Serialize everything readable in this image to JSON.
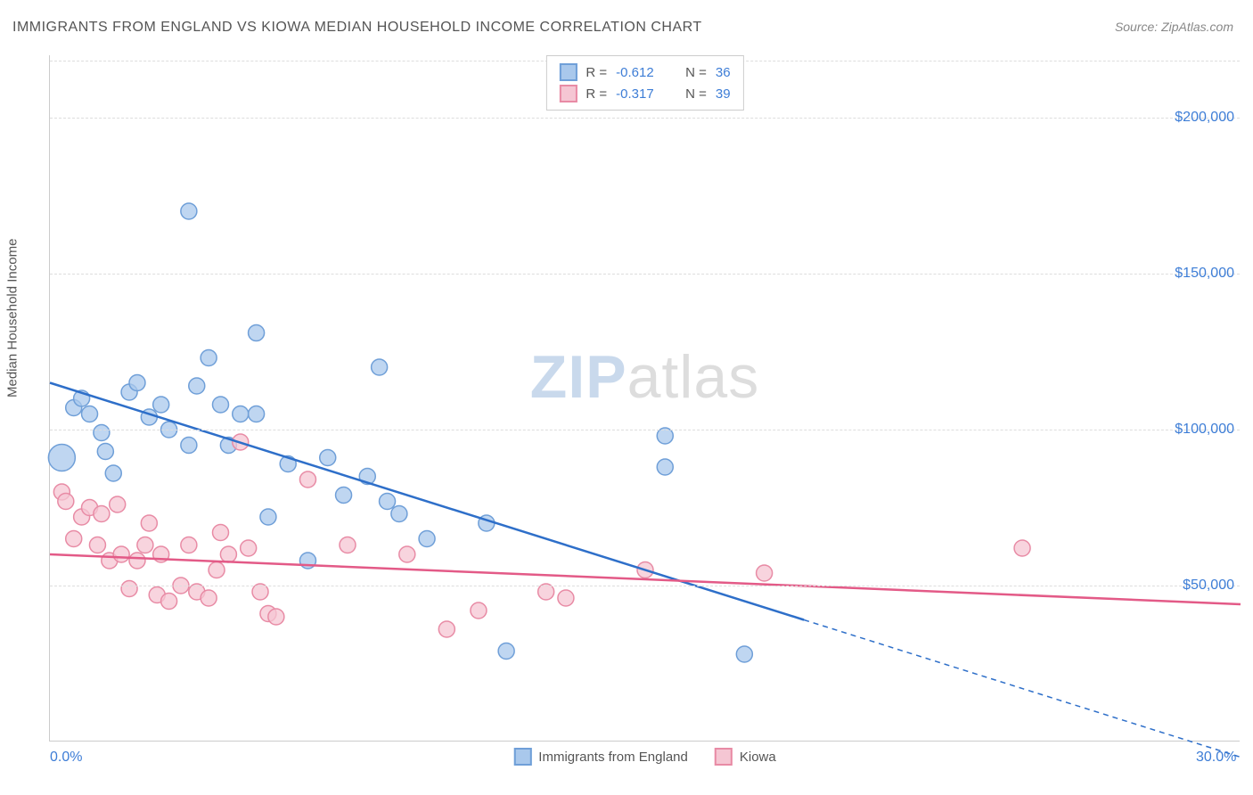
{
  "title": "IMMIGRANTS FROM ENGLAND VS KIOWA MEDIAN HOUSEHOLD INCOME CORRELATION CHART",
  "source": "Source: ZipAtlas.com",
  "watermark_prefix": "ZIP",
  "watermark_suffix": "atlas",
  "y_axis_title": "Median Household Income",
  "chart": {
    "type": "scatter",
    "xlim": [
      0,
      30
    ],
    "ylim": [
      0,
      220000
    ],
    "x_ticks": [
      {
        "v": 0,
        "label": "0.0%"
      },
      {
        "v": 30,
        "label": "30.0%"
      }
    ],
    "y_ticks": [
      {
        "v": 50000,
        "label": "$50,000"
      },
      {
        "v": 100000,
        "label": "$100,000"
      },
      {
        "v": 150000,
        "label": "$150,000"
      },
      {
        "v": 200000,
        "label": "$200,000"
      }
    ],
    "grid_color": "#dddddd",
    "background_color": "#ffffff",
    "series": [
      {
        "name": "Immigrants from England",
        "fill": "#a9c8ec",
        "stroke": "#6f9fd8",
        "line_color": "#2e6fc9",
        "R": "-0.612",
        "N": "36",
        "trend": {
          "x1": 0,
          "y1": 115000,
          "x2": 30,
          "y2": -5000,
          "solid_until_x": 19
        },
        "marker_radius": 9,
        "points": [
          {
            "x": 0.3,
            "y": 91000,
            "r": 15
          },
          {
            "x": 0.6,
            "y": 107000
          },
          {
            "x": 0.8,
            "y": 110000
          },
          {
            "x": 1.0,
            "y": 105000
          },
          {
            "x": 1.3,
            "y": 99000
          },
          {
            "x": 1.4,
            "y": 93000
          },
          {
            "x": 1.6,
            "y": 86000
          },
          {
            "x": 2.0,
            "y": 112000
          },
          {
            "x": 2.2,
            "y": 115000
          },
          {
            "x": 2.5,
            "y": 104000
          },
          {
            "x": 2.8,
            "y": 108000
          },
          {
            "x": 3.0,
            "y": 100000
          },
          {
            "x": 3.5,
            "y": 170000
          },
          {
            "x": 3.5,
            "y": 95000
          },
          {
            "x": 3.7,
            "y": 114000
          },
          {
            "x": 4.0,
            "y": 123000
          },
          {
            "x": 4.3,
            "y": 108000
          },
          {
            "x": 4.5,
            "y": 95000
          },
          {
            "x": 4.8,
            "y": 105000
          },
          {
            "x": 5.2,
            "y": 131000
          },
          {
            "x": 5.2,
            "y": 105000
          },
          {
            "x": 5.5,
            "y": 72000
          },
          {
            "x": 6.0,
            "y": 89000
          },
          {
            "x": 6.5,
            "y": 58000
          },
          {
            "x": 7.0,
            "y": 91000
          },
          {
            "x": 7.4,
            "y": 79000
          },
          {
            "x": 8.0,
            "y": 85000
          },
          {
            "x": 8.3,
            "y": 120000
          },
          {
            "x": 8.5,
            "y": 77000
          },
          {
            "x": 8.8,
            "y": 73000
          },
          {
            "x": 9.5,
            "y": 65000
          },
          {
            "x": 11.0,
            "y": 70000
          },
          {
            "x": 11.5,
            "y": 29000
          },
          {
            "x": 15.5,
            "y": 98000
          },
          {
            "x": 15.5,
            "y": 88000
          },
          {
            "x": 17.5,
            "y": 28000
          }
        ]
      },
      {
        "name": "Kiowa",
        "fill": "#f5c6d3",
        "stroke": "#e88ba5",
        "line_color": "#e35a87",
        "R": "-0.317",
        "N": "39",
        "trend": {
          "x1": 0,
          "y1": 60000,
          "x2": 30,
          "y2": 44000,
          "solid_until_x": 30
        },
        "marker_radius": 9,
        "points": [
          {
            "x": 0.3,
            "y": 80000
          },
          {
            "x": 0.4,
            "y": 77000
          },
          {
            "x": 0.6,
            "y": 65000
          },
          {
            "x": 0.8,
            "y": 72000
          },
          {
            "x": 1.0,
            "y": 75000
          },
          {
            "x": 1.2,
            "y": 63000
          },
          {
            "x": 1.3,
            "y": 73000
          },
          {
            "x": 1.5,
            "y": 58000
          },
          {
            "x": 1.7,
            "y": 76000
          },
          {
            "x": 1.8,
            "y": 60000
          },
          {
            "x": 2.0,
            "y": 49000
          },
          {
            "x": 2.2,
            "y": 58000
          },
          {
            "x": 2.4,
            "y": 63000
          },
          {
            "x": 2.5,
            "y": 70000
          },
          {
            "x": 2.7,
            "y": 47000
          },
          {
            "x": 2.8,
            "y": 60000
          },
          {
            "x": 3.0,
            "y": 45000
          },
          {
            "x": 3.3,
            "y": 50000
          },
          {
            "x": 3.5,
            "y": 63000
          },
          {
            "x": 3.7,
            "y": 48000
          },
          {
            "x": 4.0,
            "y": 46000
          },
          {
            "x": 4.2,
            "y": 55000
          },
          {
            "x": 4.3,
            "y": 67000
          },
          {
            "x": 4.5,
            "y": 60000
          },
          {
            "x": 4.8,
            "y": 96000
          },
          {
            "x": 5.0,
            "y": 62000
          },
          {
            "x": 5.3,
            "y": 48000
          },
          {
            "x": 5.5,
            "y": 41000
          },
          {
            "x": 5.7,
            "y": 40000
          },
          {
            "x": 6.5,
            "y": 84000
          },
          {
            "x": 7.5,
            "y": 63000
          },
          {
            "x": 9.0,
            "y": 60000
          },
          {
            "x": 10.0,
            "y": 36000
          },
          {
            "x": 10.8,
            "y": 42000
          },
          {
            "x": 12.5,
            "y": 48000
          },
          {
            "x": 13.0,
            "y": 46000
          },
          {
            "x": 15.0,
            "y": 55000
          },
          {
            "x": 18.0,
            "y": 54000
          },
          {
            "x": 24.5,
            "y": 62000
          }
        ]
      }
    ]
  },
  "legend_bottom": [
    {
      "label": "Immigrants from England",
      "fill": "#a9c8ec",
      "stroke": "#6f9fd8"
    },
    {
      "label": "Kiowa",
      "fill": "#f5c6d3",
      "stroke": "#e88ba5"
    }
  ]
}
